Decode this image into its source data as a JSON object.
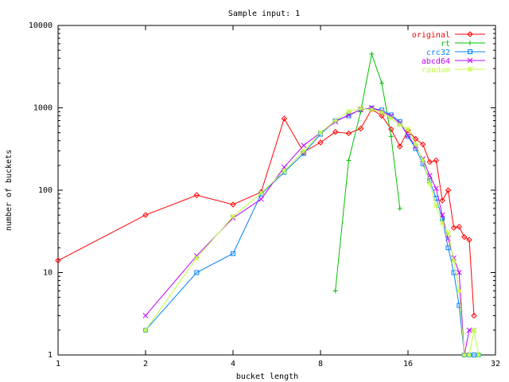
{
  "chart_data": {
    "type": "line",
    "title": "Sample input: 1",
    "xlabel": "bucket length",
    "ylabel": "number of buckets",
    "x_scale": "log2",
    "y_scale": "log10",
    "xlim": [
      1,
      32
    ],
    "ylim": [
      1,
      10000
    ],
    "x_ticks": [
      {
        "value": 1,
        "label": "1"
      },
      {
        "value": 2,
        "label": "2"
      },
      {
        "value": 4,
        "label": "4"
      },
      {
        "value": 8,
        "label": "8"
      },
      {
        "value": 16,
        "label": "16"
      },
      {
        "value": 32,
        "label": "32"
      }
    ],
    "y_ticks": [
      {
        "value": 1,
        "label": "1"
      },
      {
        "value": 10,
        "label": "10"
      },
      {
        "value": 100,
        "label": "100"
      },
      {
        "value": 1000,
        "label": "1000"
      },
      {
        "value": 10000,
        "label": "10000"
      }
    ],
    "grid": false,
    "legend_position": "top-right",
    "series": [
      {
        "name": "original",
        "color": "#ff0000",
        "marker": "diamond",
        "points": [
          [
            1,
            14
          ],
          [
            2,
            50
          ],
          [
            3,
            87
          ],
          [
            4,
            67
          ],
          [
            5,
            95
          ],
          [
            6,
            740
          ],
          [
            7,
            290
          ],
          [
            8,
            380
          ],
          [
            9,
            510
          ],
          [
            10,
            490
          ],
          [
            11,
            560
          ],
          [
            12,
            960
          ],
          [
            13,
            800
          ],
          [
            14,
            550
          ],
          [
            15,
            340
          ],
          [
            16,
            530
          ],
          [
            17,
            420
          ],
          [
            18,
            360
          ],
          [
            19,
            220
          ],
          [
            20,
            230
          ],
          [
            21,
            75
          ],
          [
            22,
            100
          ],
          [
            23,
            35
          ],
          [
            24,
            36
          ],
          [
            25,
            27
          ],
          [
            26,
            25
          ],
          [
            27,
            3
          ]
        ]
      },
      {
        "name": "rt",
        "color": "#00c000",
        "marker": "plus",
        "points": [
          [
            9,
            6
          ],
          [
            10,
            230
          ],
          [
            11,
            900
          ],
          [
            12,
            4500
          ],
          [
            13,
            2000
          ],
          [
            14,
            450
          ],
          [
            15,
            60
          ]
        ]
      },
      {
        "name": "crc32",
        "color": "#0080ff",
        "marker": "square",
        "points": [
          [
            2,
            2
          ],
          [
            3,
            10
          ],
          [
            4,
            17
          ],
          [
            5,
            90
          ],
          [
            6,
            165
          ],
          [
            7,
            280
          ],
          [
            8,
            480
          ],
          [
            9,
            700
          ],
          [
            10,
            800
          ],
          [
            11,
            960
          ],
          [
            12,
            990
          ],
          [
            13,
            940
          ],
          [
            14,
            820
          ],
          [
            15,
            680
          ],
          [
            16,
            450
          ],
          [
            17,
            320
          ],
          [
            18,
            210
          ],
          [
            19,
            130
          ],
          [
            20,
            80
          ],
          [
            21,
            45
          ],
          [
            22,
            20
          ],
          [
            23,
            10
          ],
          [
            24,
            4
          ],
          [
            25,
            1
          ],
          [
            26,
            1
          ],
          [
            27,
            1
          ],
          [
            28,
            1
          ]
        ]
      },
      {
        "name": "abcd64",
        "color": "#c000ff",
        "marker": "x",
        "points": [
          [
            2,
            3
          ],
          [
            3,
            16
          ],
          [
            4,
            46
          ],
          [
            5,
            78
          ],
          [
            6,
            190
          ],
          [
            7,
            350
          ],
          [
            8,
            500
          ],
          [
            9,
            680
          ],
          [
            10,
            820
          ],
          [
            11,
            950
          ],
          [
            12,
            1000
          ],
          [
            13,
            900
          ],
          [
            14,
            800
          ],
          [
            15,
            650
          ],
          [
            16,
            460
          ],
          [
            17,
            340
          ],
          [
            18,
            240
          ],
          [
            19,
            150
          ],
          [
            20,
            105
          ],
          [
            21,
            50
          ],
          [
            22,
            26
          ],
          [
            23,
            15
          ],
          [
            24,
            10
          ],
          [
            25,
            1
          ],
          [
            26,
            2
          ],
          [
            27,
            2
          ]
        ]
      },
      {
        "name": "random",
        "color": "#c0ff40",
        "marker": "star",
        "points": [
          [
            2,
            2
          ],
          [
            3,
            15
          ],
          [
            4,
            48
          ],
          [
            5,
            92
          ],
          [
            6,
            170
          ],
          [
            7,
            300
          ],
          [
            8,
            500
          ],
          [
            9,
            700
          ],
          [
            10,
            900
          ],
          [
            11,
            980
          ],
          [
            12,
            950
          ],
          [
            13,
            880
          ],
          [
            14,
            750
          ],
          [
            15,
            620
          ],
          [
            16,
            550
          ],
          [
            17,
            360
          ],
          [
            18,
            230
          ],
          [
            19,
            120
          ],
          [
            20,
            65
          ],
          [
            21,
            40
          ],
          [
            22,
            30
          ],
          [
            23,
            14
          ],
          [
            24,
            6
          ],
          [
            25,
            1
          ],
          [
            26,
            1
          ],
          [
            27,
            2
          ],
          [
            28,
            1
          ]
        ]
      }
    ]
  }
}
